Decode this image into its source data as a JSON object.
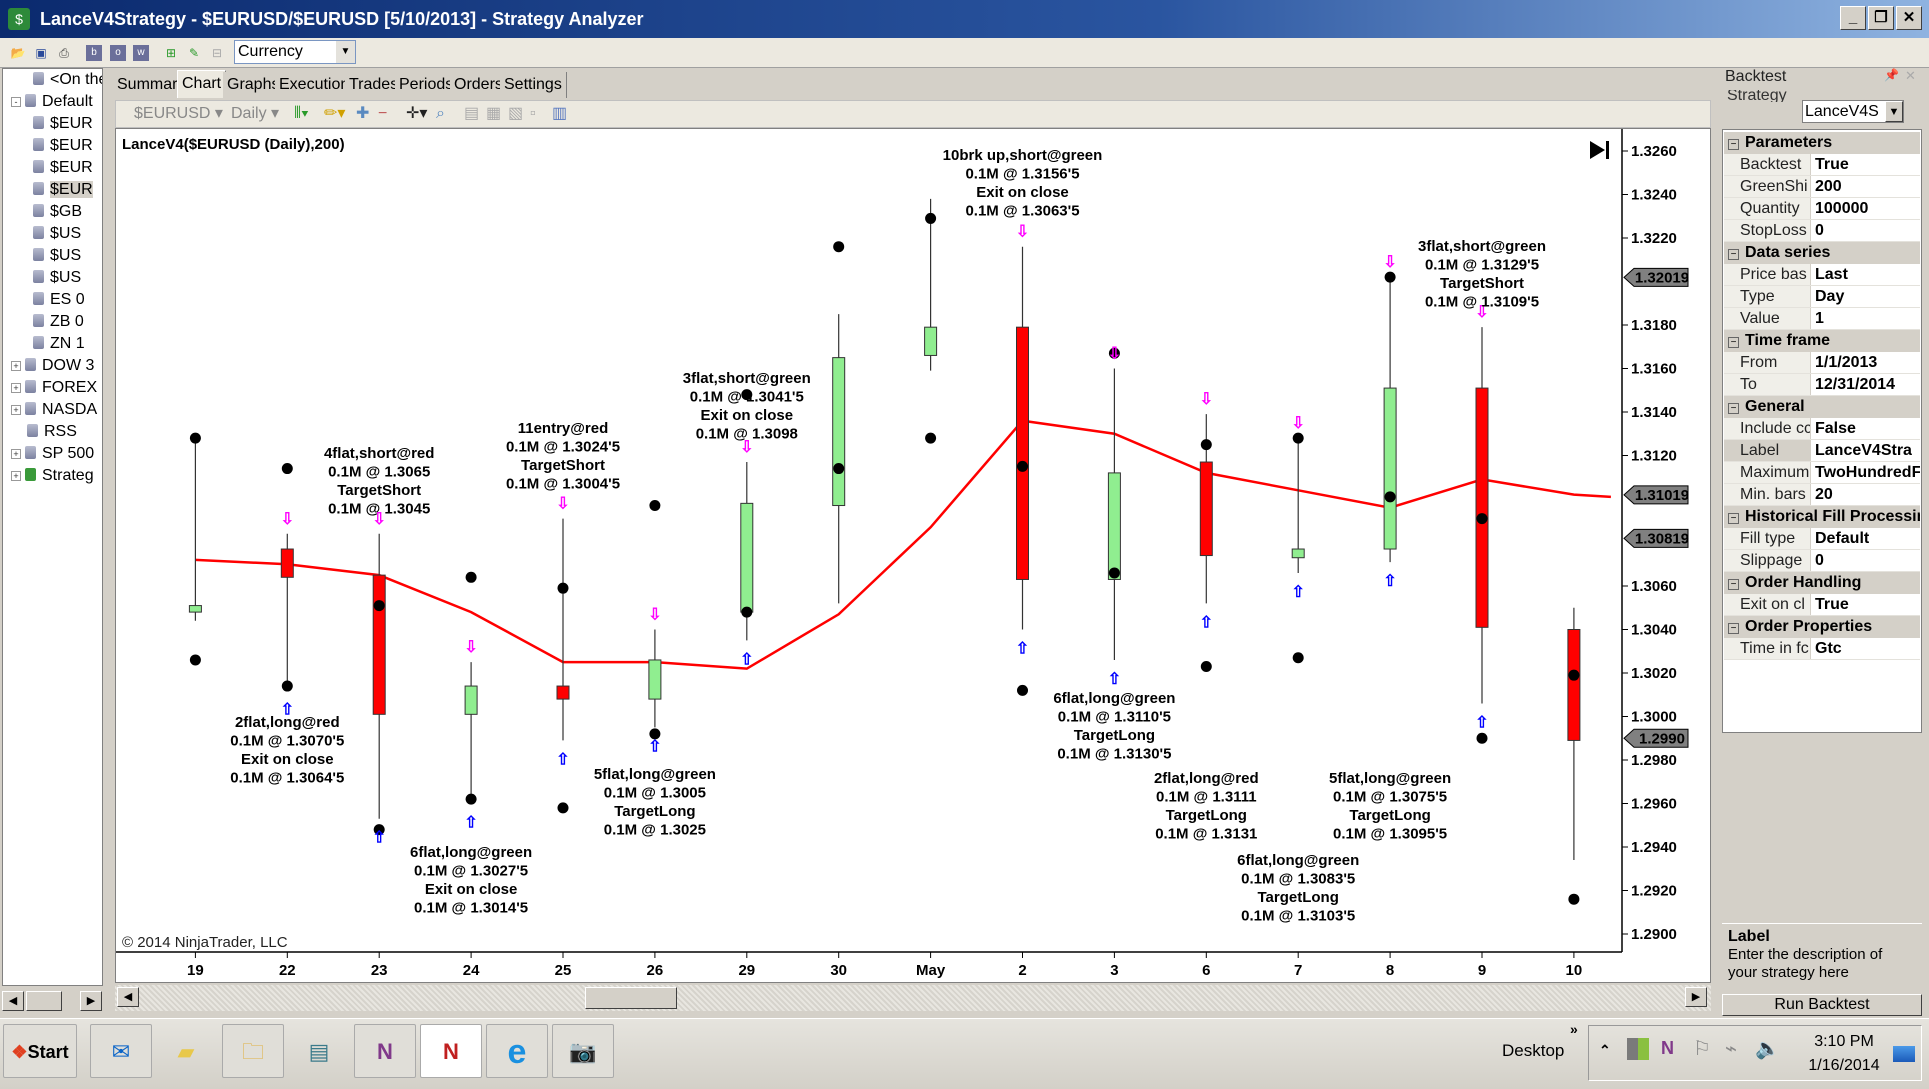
{
  "window": {
    "title": "LanceV4Strategy - $EURUSD/$EURUSD [5/10/2013] - Strategy Analyzer",
    "icon": "strategy-analyzer-icon",
    "controls": [
      "minimize",
      "restore",
      "close"
    ]
  },
  "toolbar": {
    "icons": [
      "open-folder-icon",
      "save-icon",
      "print-icon",
      "b-icon",
      "o-icon",
      "w-icon",
      "add-icon",
      "edit-icon",
      "remove-icon"
    ],
    "instrument_list": "Currency"
  },
  "tree": {
    "items": [
      {
        "label": "<On the",
        "expander": "",
        "level": 1
      },
      {
        "label": "Default",
        "expander": "-",
        "level": 0
      },
      {
        "label": "$EUR",
        "expander": "",
        "level": 1
      },
      {
        "label": "$EUR",
        "expander": "",
        "level": 1
      },
      {
        "label": "$EUR",
        "expander": "",
        "level": 1
      },
      {
        "label": "$EUR",
        "expander": "",
        "level": 1,
        "selected": true
      },
      {
        "label": "$GB",
        "expander": "",
        "level": 1
      },
      {
        "label": "$US",
        "expander": "",
        "level": 1
      },
      {
        "label": "$US",
        "expander": "",
        "level": 1
      },
      {
        "label": "$US",
        "expander": "",
        "level": 1
      },
      {
        "label": "ES 0",
        "expander": "",
        "level": 1
      },
      {
        "label": "ZB 0",
        "expander": "",
        "level": 1
      },
      {
        "label": "ZN 1",
        "expander": "",
        "level": 1
      },
      {
        "label": "DOW 3",
        "expander": "+",
        "level": 0
      },
      {
        "label": "FOREX",
        "expander": "+",
        "level": 0
      },
      {
        "label": "NASDA",
        "expander": "+",
        "level": 0
      },
      {
        "label": "RSS",
        "expander": "",
        "level": 0
      },
      {
        "label": "SP 500",
        "expander": "+",
        "level": 0
      },
      {
        "label": "Strateg",
        "expander": "+",
        "level": 0
      }
    ]
  },
  "tabs": [
    {
      "label": "Summary"
    },
    {
      "label": "Chart",
      "active": true
    },
    {
      "label": "Graphs"
    },
    {
      "label": "Executions"
    },
    {
      "label": "Trades"
    },
    {
      "label": "Periods"
    },
    {
      "label": "Orders"
    },
    {
      "label": "Settings"
    }
  ],
  "chart_toolbar": {
    "instrument": "$EURUSD",
    "interval": "Daily",
    "icons": [
      "bar-type-icon",
      "pencil-icon",
      "add-indicator-icon",
      "remove-indicator-icon",
      "crosshair-icon",
      "zoom-icon",
      "properties-icon",
      "data-box-icon",
      "chart-icon",
      "strategy-icon",
      "panel-icon"
    ]
  },
  "chart": {
    "title": "LanceV4($EURUSD (Daily),200)",
    "copyright": "© 2014 NinjaTrader, LLC",
    "colors": {
      "up": "#90ee90",
      "down": "#ff0000",
      "sma": "#ff0000",
      "entry_short": "#ff00ff",
      "entry_long": "#0000ff"
    }
  },
  "chart_data": {
    "type": "candlestick",
    "categories": [
      "19",
      "22",
      "23",
      "24",
      "25",
      "26",
      "29",
      "30",
      "May",
      "2",
      "3",
      "6",
      "7",
      "8",
      "9",
      "10"
    ],
    "ylim": [
      1.289,
      1.3265
    ],
    "yticks": [
      "1.3260",
      "1.3240",
      "1.3220",
      "1.3180",
      "1.3160",
      "1.3140",
      "1.3120",
      "1.3060",
      "1.3040",
      "1.3020",
      "1.3000",
      "1.2980",
      "1.2960",
      "1.2940",
      "1.2920",
      "1.2900"
    ],
    "ohlc": [
      [
        1.3048,
        1.3128,
        1.3044,
        1.3051
      ],
      [
        1.3077,
        1.3084,
        1.3012,
        1.3064
      ],
      [
        1.3065,
        1.3084,
        1.2953,
        1.3001
      ],
      [
        1.3001,
        1.3025,
        1.296,
        1.3014
      ],
      [
        1.3014,
        1.3091,
        1.2989,
        1.3008
      ],
      [
        1.3008,
        1.304,
        1.2995,
        1.3026
      ],
      [
        1.3048,
        1.3117,
        1.3035,
        1.3098
      ],
      [
        1.3097,
        1.3185,
        1.3052,
        1.3165
      ],
      [
        1.3166,
        1.3238,
        1.3159,
        1.3179
      ],
      [
        1.3179,
        1.3216,
        1.304,
        1.3063
      ],
      [
        1.3063,
        1.316,
        1.3026,
        1.3112
      ],
      [
        1.3117,
        1.3139,
        1.3052,
        1.3074
      ],
      [
        1.3073,
        1.3128,
        1.3066,
        1.3077
      ],
      [
        1.3077,
        1.3202,
        1.3071,
        1.3151
      ],
      [
        1.3151,
        1.3179,
        1.3006,
        1.3041
      ],
      [
        1.304,
        1.305,
        1.2934,
        1.2989
      ]
    ],
    "dots": [
      [
        1.3128,
        1.3026
      ],
      [
        1.3114,
        1.3014
      ],
      [
        1.3051,
        1.2948
      ],
      [
        1.3064,
        1.2962
      ],
      [
        1.3059,
        1.2958
      ],
      [
        1.3097,
        1.2992
      ],
      [
        1.3148,
        1.3048
      ],
      [
        1.3216,
        1.3114
      ],
      [
        1.3229,
        1.3128
      ],
      [
        1.3115,
        1.3012
      ],
      [
        1.3167,
        1.3066
      ],
      [
        1.3125,
        1.3023
      ],
      [
        1.3128,
        1.3027
      ],
      [
        1.3202,
        1.3101
      ],
      [
        1.3091,
        1.299
      ],
      [
        1.3019,
        1.2916
      ]
    ],
    "sma": {
      "period": 200,
      "values": [
        1.3072,
        1.307,
        1.3065,
        1.3048,
        1.3025,
        1.3025,
        1.3022,
        1.3047,
        1.3087,
        1.3136,
        1.313,
        1.3112,
        1.3104,
        1.3096,
        1.3109,
        1.3102
      ]
    },
    "signal_arrows": [
      false,
      true,
      true,
      true,
      true,
      true,
      true,
      false,
      false,
      true,
      true,
      true,
      true,
      true,
      true,
      false
    ],
    "price_markers": [
      "1.32019",
      "1.31019",
      "1.30819",
      "1.2990"
    ],
    "annotations": [
      {
        "bar": 9,
        "side": "above",
        "lines": [
          "10brk up,short@green",
          "0.1M @ 1.3156'5",
          "Exit on close",
          "0.1M @ 1.3063'5"
        ]
      },
      {
        "bar": 2,
        "side": "above",
        "lines": [
          "4flat,short@red",
          "0.1M @ 1.3065",
          "TargetShort",
          "0.1M @ 1.3045"
        ]
      },
      {
        "bar": 4,
        "side": "above",
        "lines": [
          "11entry@red",
          "0.1M @ 1.3024'5",
          "TargetShort",
          "0.1M @ 1.3004'5"
        ]
      },
      {
        "bar": 6,
        "side": "above",
        "lines": [
          "3flat,short@green",
          "0.1M @ 1.3041'5",
          "Exit on close",
          "0.1M @ 1.3098"
        ]
      },
      {
        "bar": 14,
        "side": "above",
        "lines": [
          "3flat,short@green",
          "0.1M @ 1.3129'5",
          "TargetShort",
          "0.1M @ 1.3109'5"
        ]
      },
      {
        "bar": 1,
        "side": "below",
        "lines": [
          "2flat,long@red",
          "0.1M @ 1.3070'5",
          "Exit on close",
          "0.1M @ 1.3064'5"
        ]
      },
      {
        "bar": 3,
        "side": "below",
        "lines": [
          "6flat,long@green",
          "0.1M @ 1.3027'5",
          "Exit on close",
          "0.1M @ 1.3014'5"
        ]
      },
      {
        "bar": 5,
        "side": "below",
        "lines": [
          "5flat,long@green",
          "0.1M @ 1.3005",
          "TargetLong",
          "0.1M @ 1.3025"
        ]
      },
      {
        "bar": 10,
        "side": "below",
        "lines": [
          "6flat,long@green",
          "0.1M @ 1.3110'5",
          "TargetLong",
          "0.1M @ 1.3130'5"
        ]
      },
      {
        "bar": 11,
        "side": "below",
        "lines": [
          "2flat,long@red",
          "0.1M @ 1.3111",
          "TargetLong",
          "0.1M @ 1.3131"
        ]
      },
      {
        "bar": 12,
        "side": "below",
        "lines": [
          "6flat,long@green",
          "0.1M @ 1.3083'5",
          "TargetLong",
          "0.1M @ 1.3103'5"
        ]
      },
      {
        "bar": 13,
        "side": "below",
        "lines": [
          "5flat,long@green",
          "0.1M @ 1.3075'5",
          "TargetLong",
          "0.1M @ 1.3095'5"
        ]
      }
    ]
  },
  "backtest": {
    "title": "Backtest",
    "strategy_label": "Strategy",
    "strategy_value": "LanceV4S",
    "grid": [
      {
        "category": "Parameters"
      },
      {
        "k": "Backtest",
        "v": "True"
      },
      {
        "k": "GreenShi",
        "v": "200"
      },
      {
        "k": "Quantity",
        "v": "100000"
      },
      {
        "k": "StopLoss",
        "v": "0"
      },
      {
        "category": "Data series"
      },
      {
        "k": "Price bas",
        "v": "Last"
      },
      {
        "k": "Type",
        "v": "Day"
      },
      {
        "k": "Value",
        "v": "1"
      },
      {
        "category": "Time frame"
      },
      {
        "k": "From",
        "v": "1/1/2013"
      },
      {
        "k": "To",
        "v": "12/31/2014"
      },
      {
        "category": "General"
      },
      {
        "k": "Include cc",
        "v": "False"
      },
      {
        "k": "Label",
        "v": "LanceV4Stra"
      },
      {
        "k": "Maximum",
        "v": "TwoHundredF"
      },
      {
        "k": "Min. bars",
        "v": "20"
      },
      {
        "category": "Historical Fill Processin"
      },
      {
        "k": "Fill type",
        "v": "Default"
      },
      {
        "k": "Slippage",
        "v": "0"
      },
      {
        "category": "Order Handling"
      },
      {
        "k": "Exit on cl",
        "v": "True"
      },
      {
        "category": "Order Properties"
      },
      {
        "k": "Time in fc",
        "v": "Gtc"
      }
    ],
    "help_title": "Label",
    "help_text": "Enter the description of your strategy here",
    "run_label": "Run Backtest"
  },
  "taskbar": {
    "start": "Start",
    "apps": [
      "outlook-icon",
      "sticky-notes-icon",
      "file-explorer-icon",
      "window-icon",
      "onenote-icon",
      "ninjatrader-icon",
      "internet-explorer-icon",
      "camera-icon"
    ],
    "desktop": "Desktop",
    "clock_time": "3:10 PM",
    "clock_date": "1/16/2014"
  }
}
